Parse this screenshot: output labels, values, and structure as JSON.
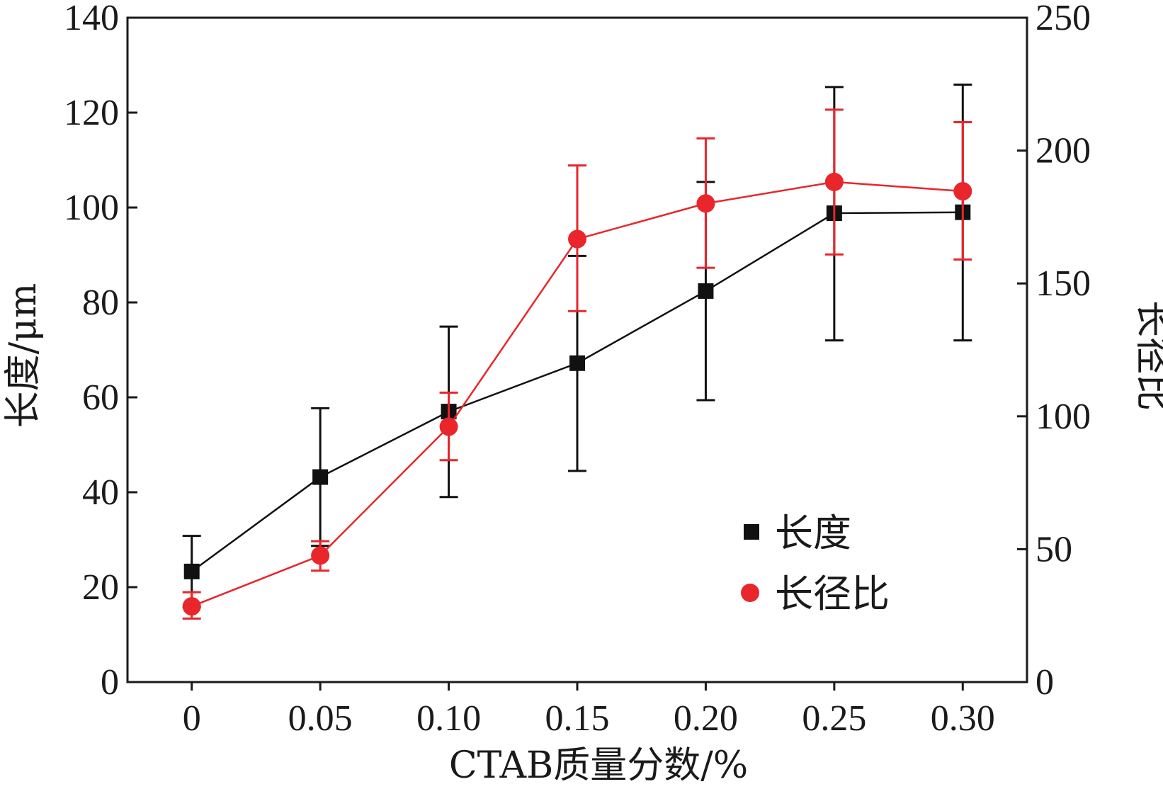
{
  "chart_data": {
    "type": "line",
    "xlabel": "CTAB质量分数/%",
    "ylabel_left": "长度/μm",
    "ylabel_right": "长径比",
    "categories": [
      "0",
      "0.05",
      "0.10",
      "0.15",
      "0.20",
      "0.25",
      "0.30"
    ],
    "x": [
      0,
      0.05,
      0.1,
      0.15,
      0.2,
      0.25,
      0.3
    ],
    "xlim": [
      -0.025,
      0.325
    ],
    "ylim_left": [
      0,
      140
    ],
    "ylim_right": [
      0,
      250
    ],
    "yticks_left": [
      0,
      20,
      40,
      60,
      80,
      100,
      120,
      140
    ],
    "yticks_right": [
      0,
      50,
      100,
      150,
      200,
      250
    ],
    "grid": false,
    "legend_position": "lower-right",
    "series": [
      {
        "name": "长度",
        "axis": "left",
        "marker": "square",
        "color": "#111111",
        "values": [
          23.3,
          43.2,
          57.0,
          67.2,
          82.4,
          98.8,
          99.0
        ],
        "error_low": [
          15.8,
          28.7,
          39.0,
          44.5,
          59.4,
          72.0,
          72.0
        ],
        "error_high": [
          30.8,
          57.7,
          74.9,
          89.8,
          105.4,
          125.4,
          125.9
        ]
      },
      {
        "name": "长径比",
        "axis": "right",
        "marker": "circle",
        "color": "#e8262b",
        "values": [
          28.5,
          47.6,
          96.1,
          166.7,
          180.1,
          188.2,
          184.7
        ],
        "error_low": [
          23.9,
          41.9,
          83.5,
          139.6,
          155.9,
          160.9,
          159.0
        ],
        "error_high": [
          33.8,
          53.0,
          108.9,
          194.4,
          204.6,
          215.4,
          210.7
        ]
      }
    ]
  }
}
